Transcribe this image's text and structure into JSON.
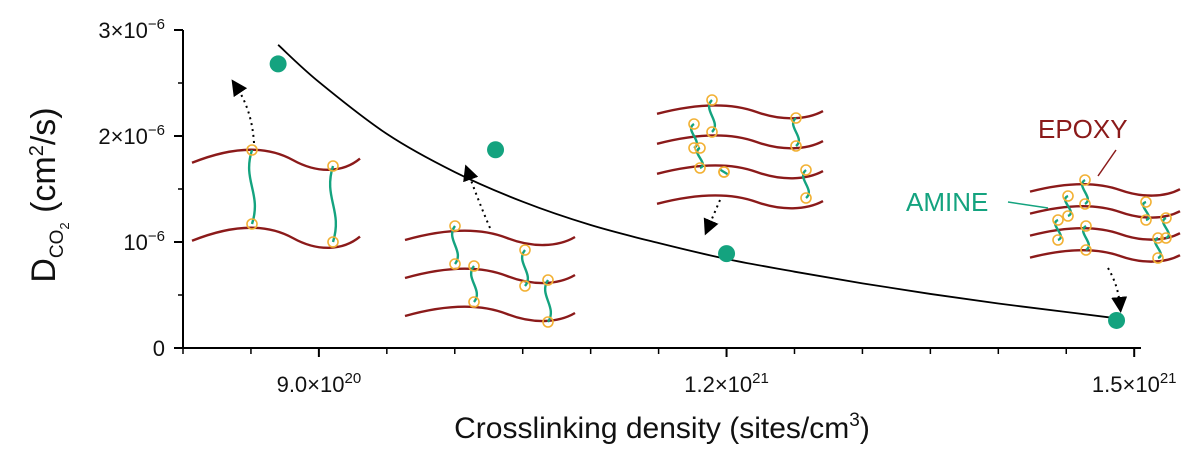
{
  "chart_data": {
    "type": "scatter",
    "title": "",
    "xlabel": {
      "text": "Crosslinking density (sites/cm",
      "sup": "3",
      "tail": ")"
    },
    "ylabel": {
      "main": "D",
      "sub": "CO",
      "subsub": "2",
      "unit": "(cm",
      "unit_sup": "2",
      "unit_tail": "/s)"
    },
    "xlim": [
      8e+20,
      1.505e+21
    ],
    "ylim": [
      0,
      3e-06
    ],
    "x_ticks": [
      {
        "value": 9e+20,
        "mantissa": "9.0×10",
        "exp": "20"
      },
      {
        "value": 1.2e+21,
        "mantissa": "1.2×10",
        "exp": "21"
      },
      {
        "value": 1.5e+21,
        "mantissa": "1.5×10",
        "exp": "21"
      }
    ],
    "y_ticks": [
      {
        "value": 0,
        "mantissa": "0",
        "exp": ""
      },
      {
        "value": 1e-06,
        "mantissa": "10",
        "exp": "−6"
      },
      {
        "value": 2e-06,
        "mantissa": "2×10",
        "exp": "−6"
      },
      {
        "value": 3e-06,
        "mantissa": "3×10",
        "exp": "−6"
      }
    ],
    "series": [
      {
        "kind": "points",
        "color": "#14a37f",
        "x": [
          8.7e+20,
          1.03e+21,
          1.2e+21,
          1.487e+21
        ],
        "y": [
          2.68e-06,
          1.87e-06,
          8.9e-07,
          2.6e-07
        ]
      },
      {
        "kind": "fit_curve",
        "color": "#000000",
        "x": [
          8.7e+20,
          9e+20,
          9.5e+20,
          1e+21,
          1.05e+21,
          1.1e+21,
          1.15e+21,
          1.2e+21,
          1.25e+21,
          1.3e+21,
          1.35e+21,
          1.4e+21,
          1.45e+21,
          1.487e+21
        ],
        "y": [
          2.86e-06,
          2.51e-06,
          2.02e-06,
          1.66e-06,
          1.38e-06,
          1.16e-06,
          9.9e-07,
          8.4e-07,
          7.2e-07,
          6.1e-07,
          5.1e-07,
          4.2e-07,
          3.4e-07,
          2.8e-07
        ]
      }
    ],
    "annotations": [
      {
        "text": "EPOXY",
        "color": "#8b1a1a"
      },
      {
        "text": "AMINE",
        "color": "#14a37f"
      }
    ],
    "grid": false
  },
  "colors": {
    "epoxy": "#8b1a1a",
    "amine": "#14a37f",
    "node": "#f2b134",
    "axis": "#000000"
  }
}
